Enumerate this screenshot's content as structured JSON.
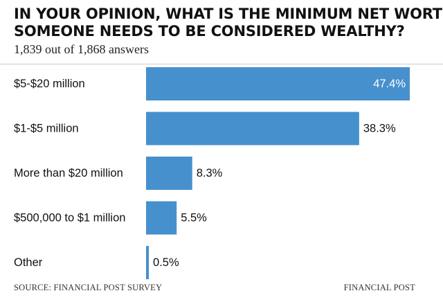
{
  "title_lines": [
    "IN YOUR OPINION, WHAT IS THE MINIMUM NET WORTH",
    "SOMEONE NEEDS TO BE CONSIDERED WEALTHY?"
  ],
  "subtitle": "1,839 out of 1,868 answers",
  "source": "SOURCE: FINANCIAL POST SURVEY",
  "credit": "FINANCIAL POST",
  "colors": {
    "bar": "#4690cd",
    "inside_label": "#ffffff",
    "text": "#111111"
  },
  "chart_data": {
    "type": "bar",
    "orientation": "horizontal",
    "categories": [
      "$5-$20 million",
      "$1-$5 million",
      "More than $20 million",
      "$500,000 to $1 million",
      "Other"
    ],
    "values": [
      47.4,
      38.3,
      8.3,
      5.5,
      0.5
    ],
    "value_labels": [
      "47.4%",
      "38.3%",
      "8.3%",
      "5.5%",
      "0.5%"
    ],
    "unit": "%",
    "xlim": [
      0,
      47.4
    ],
    "grid": false,
    "legend": "none"
  }
}
